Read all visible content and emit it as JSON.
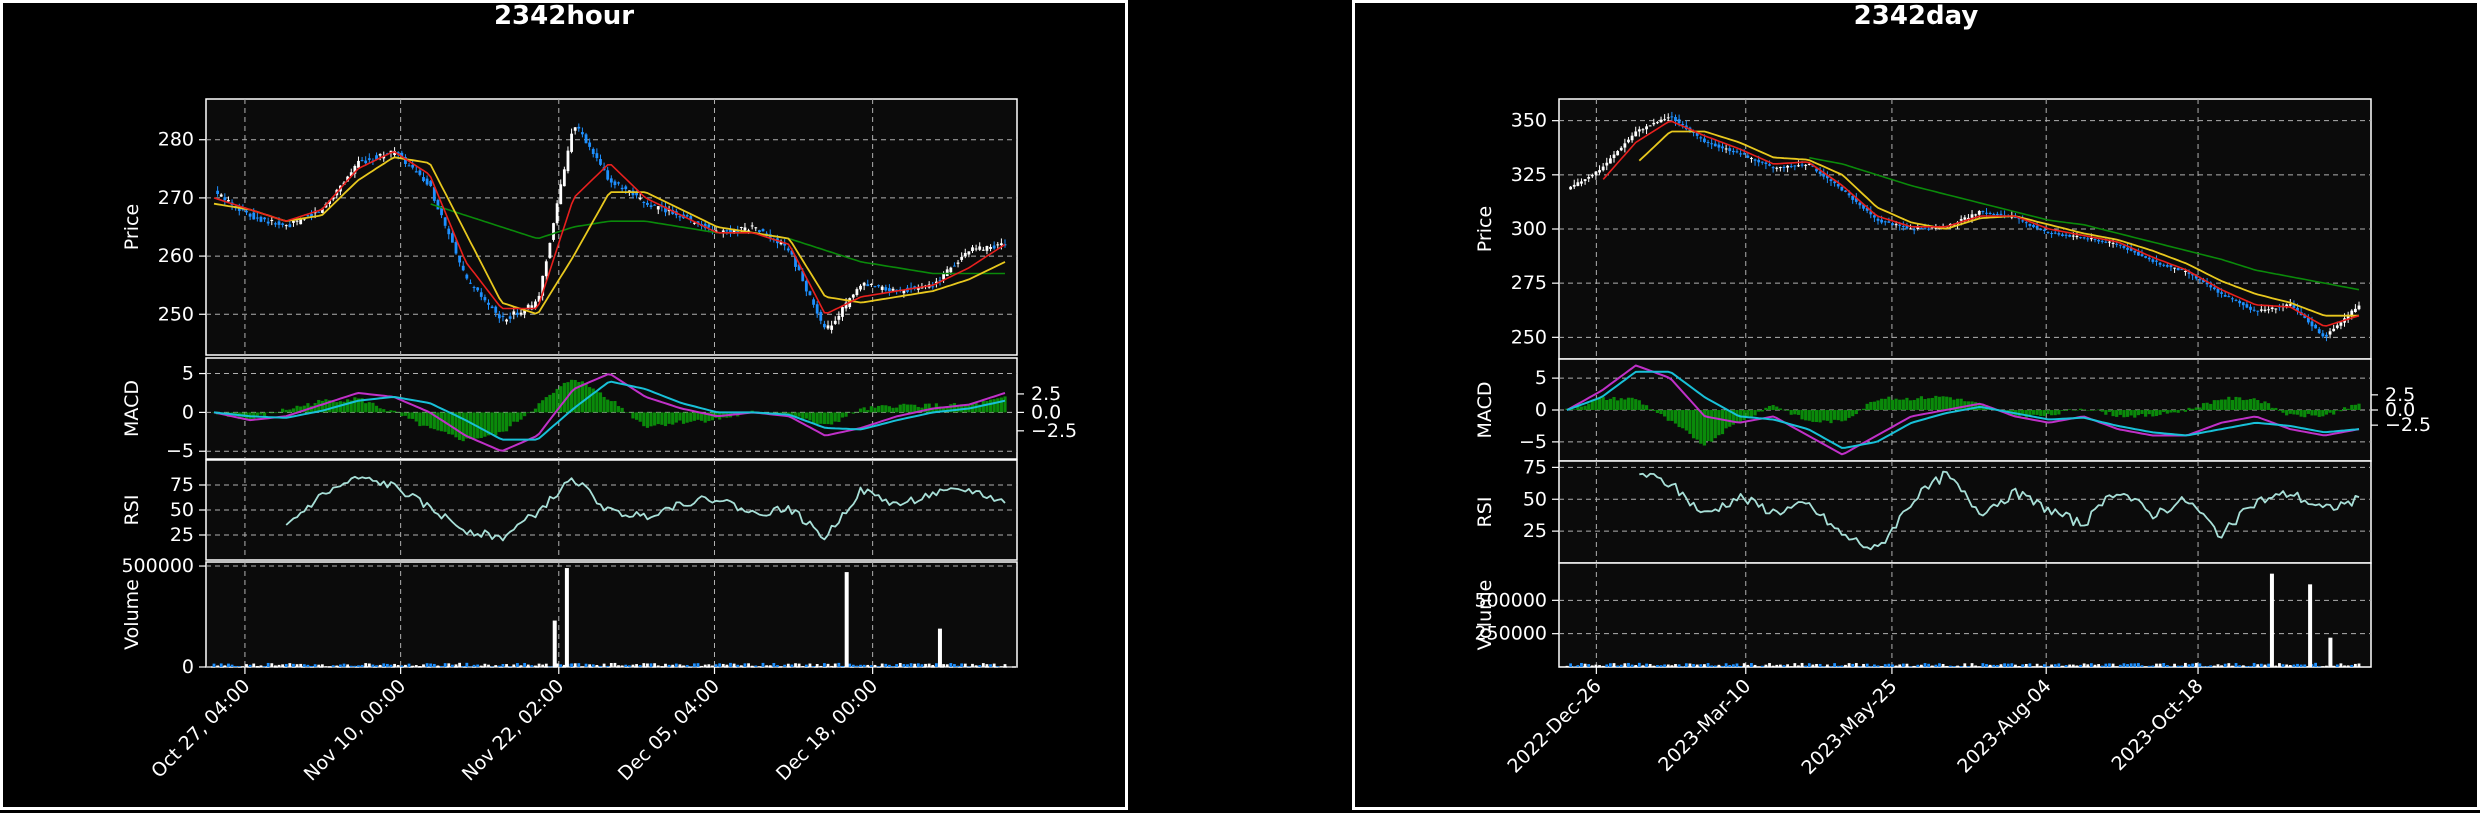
{
  "charts": [
    {
      "title": "2342hour",
      "xticks": [
        "Oct 27, 04:00",
        "Nov 10, 00:00",
        "Nov 22, 02:00",
        "Dec 05, 04:00",
        "Dec 18, 00:00"
      ],
      "panels": {
        "price": {
          "label": "Price",
          "ticks": [
            "280",
            "270",
            "260",
            "250"
          ]
        },
        "macd": {
          "label": "MACD",
          "ticks": [
            "5",
            "0",
            "−5"
          ],
          "right_ticks": [
            "2.5",
            "0.0",
            "−2.5"
          ]
        },
        "rsi": {
          "label": "RSI",
          "ticks": [
            "75",
            "50",
            "25"
          ]
        },
        "volume": {
          "label": "Volume",
          "ticks": [
            "500000",
            "0"
          ]
        }
      }
    },
    {
      "title": "2342day",
      "xticks": [
        "2022-Dec-26",
        "2023-Mar-10",
        "2023-May-25",
        "2023-Aug-04",
        "2023-Oct-18"
      ],
      "panels": {
        "price": {
          "label": "Price",
          "ticks": [
            "350",
            "325",
            "300",
            "275",
            "250"
          ]
        },
        "macd": {
          "label": "MACD",
          "ticks": [
            "5",
            "0",
            "−5"
          ],
          "right_ticks": [
            "2.5",
            "0.0",
            "−2.5"
          ]
        },
        "rsi": {
          "label": "RSI",
          "ticks": [
            "75",
            "50",
            "25"
          ]
        },
        "volume": {
          "label": "Volume",
          "ticks": [
            "500000",
            "250000"
          ]
        }
      }
    }
  ],
  "colors": {
    "background": "#000000",
    "plot_bg": "#0b0b0b",
    "up": "#ffffff",
    "down": "#1e90ff",
    "ma_short": "#e8201e",
    "ma_mid": "#e8c81e",
    "ma_long": "#0a8a0a",
    "macd": "#c030c8",
    "signal": "#18c0d8",
    "hist": "#0a8a0a",
    "rsi": "#a8e0d8",
    "grid": "#b0b0b0"
  },
  "chart_data": [
    {
      "type": "line",
      "title": "2342hour",
      "xlabel": "",
      "categories": [
        "Oct 27, 04:00",
        "Nov 10, 00:00",
        "Nov 22, 02:00",
        "Dec 05, 04:00",
        "Dec 18, 00:00"
      ],
      "price": {
        "ylabel": "Price",
        "ylim": [
          243,
          287
        ],
        "close": [
          271,
          267,
          265,
          268,
          276,
          278,
          272,
          256,
          249,
          252,
          283,
          273,
          269,
          267,
          264,
          265,
          261,
          247,
          255,
          254,
          255,
          261,
          262
        ],
        "ma_short": [
          270,
          268,
          266,
          268,
          275,
          278,
          274,
          259,
          251,
          251,
          270,
          276,
          270,
          267,
          264,
          264,
          262,
          250,
          253,
          254,
          255,
          258,
          262
        ],
        "ma_mid": [
          269,
          268,
          266,
          267,
          273,
          277,
          276,
          264,
          252,
          250,
          260,
          271,
          271,
          268,
          265,
          264,
          263,
          253,
          252,
          253,
          254,
          256,
          259
        ],
        "ma_long": [
          null,
          null,
          null,
          null,
          null,
          null,
          269,
          267,
          265,
          263,
          265,
          266,
          266,
          265,
          264,
          264,
          263,
          261,
          259,
          258,
          257,
          257,
          257
        ]
      },
      "macd": {
        "ylabel": "MACD",
        "ylim": [
          -6,
          7
        ],
        "macd": [
          0,
          -1,
          -0.5,
          1,
          2.5,
          2,
          0,
          -3,
          -5,
          -3,
          3,
          5,
          2,
          0.5,
          -0.5,
          0,
          -0.5,
          -3,
          -2,
          -0.5,
          0.5,
          1,
          2.5
        ],
        "signal": [
          0,
          -0.5,
          -0.7,
          0.2,
          1.5,
          2,
          1.2,
          -1,
          -3.5,
          -3.5,
          0.5,
          4,
          3,
          1.2,
          0,
          0,
          -0.3,
          -2,
          -2.2,
          -1,
          0,
          0.5,
          1.5
        ],
        "hist": [
          0,
          -0.5,
          0.2,
          0.8,
          1,
          0,
          -1.2,
          -2,
          -1.5,
          0.5,
          2.5,
          1,
          -1,
          -0.7,
          -0.5,
          0,
          -0.2,
          -1,
          0.2,
          0.5,
          0.5,
          0.5,
          1
        ]
      },
      "rsi": {
        "ylabel": "RSI",
        "ylim": [
          0,
          100
        ],
        "values": [
          null,
          null,
          34,
          65,
          82,
          74,
          52,
          30,
          22,
          48,
          82,
          48,
          44,
          57,
          62,
          46,
          52,
          22,
          70,
          55,
          66,
          70,
          58
        ]
      },
      "volume": {
        "ylabel": "Volume",
        "ylim": [
          0,
          520000
        ],
        "spikes": [
          {
            "x": "Nov 22, 02:00",
            "value": 230000
          },
          {
            "x": "Nov 22, 02:00",
            "value": 490000
          },
          {
            "x": "Dec 18, 00:00",
            "value": 470000
          },
          {
            "x": "Dec 18, 00:00",
            "value": 190000
          }
        ]
      }
    },
    {
      "type": "line",
      "title": "2342day",
      "xlabel": "",
      "categories": [
        "2022-Dec-26",
        "2023-Mar-10",
        "2023-May-25",
        "2023-Aug-04",
        "2023-Oct-18"
      ],
      "price": {
        "ylabel": "Price",
        "ylim": [
          240,
          360
        ],
        "close": [
          318,
          328,
          345,
          352,
          340,
          335,
          328,
          330,
          318,
          304,
          300,
          301,
          308,
          305,
          298,
          296,
          293,
          285,
          280,
          270,
          262,
          265,
          250,
          265
        ],
        "ma_short": [
          null,
          322,
          340,
          350,
          343,
          337,
          330,
          331,
          320,
          306,
          301,
          301,
          306,
          306,
          300,
          297,
          294,
          287,
          281,
          272,
          265,
          264,
          255,
          260
        ],
        "ma_mid": [
          null,
          null,
          330,
          345,
          345,
          340,
          333,
          332,
          325,
          310,
          303,
          300,
          305,
          306,
          302,
          298,
          295,
          290,
          284,
          276,
          270,
          266,
          260,
          260
        ],
        "ma_long": [
          null,
          null,
          null,
          null,
          null,
          null,
          null,
          333,
          330,
          325,
          320,
          316,
          312,
          308,
          304,
          302,
          298,
          294,
          290,
          286,
          281,
          278,
          275,
          272
        ]
      },
      "macd": {
        "ylabel": "MACD",
        "ylim": [
          -8,
          8
        ],
        "macd": [
          0,
          3,
          7,
          5,
          -1,
          -2,
          -1,
          -4,
          -7,
          -4,
          -1,
          0,
          1,
          -1,
          -2,
          -1,
          -3,
          -4,
          -4,
          -2,
          -1,
          -3,
          -4,
          -3
        ],
        "signal": [
          0,
          2,
          6,
          6,
          2,
          -1,
          -1.5,
          -3,
          -6,
          -5,
          -2,
          -0.5,
          0.5,
          -0.5,
          -1.5,
          -1.2,
          -2.5,
          -3.5,
          -4,
          -3,
          -2,
          -2.5,
          -3.5,
          -3
        ],
        "hist": [
          0,
          1,
          1,
          -1,
          -3,
          -1,
          0.5,
          -1,
          -1,
          1,
          1,
          1.2,
          0.5,
          -0.5,
          -0.5,
          0.2,
          -0.5,
          -0.5,
          0,
          1,
          1,
          -0.5,
          -0.5,
          0.5
        ]
      },
      "rsi": {
        "ylabel": "RSI",
        "ylim": [
          0,
          80
        ],
        "values": [
          null,
          null,
          72,
          62,
          38,
          52,
          40,
          46,
          22,
          10,
          48,
          70,
          40,
          55,
          42,
          30,
          58,
          38,
          50,
          22,
          48,
          55,
          42,
          50
        ]
      },
      "volume": {
        "ylabel": "Volume",
        "ylim": [
          0,
          780000
        ],
        "spikes": [
          {
            "x": "2023-Oct-18",
            "value": 700000
          },
          {
            "x": "2023-Oct-18",
            "value": 620000
          },
          {
            "x": "2023-Oct-18",
            "value": 220000
          }
        ]
      }
    }
  ]
}
